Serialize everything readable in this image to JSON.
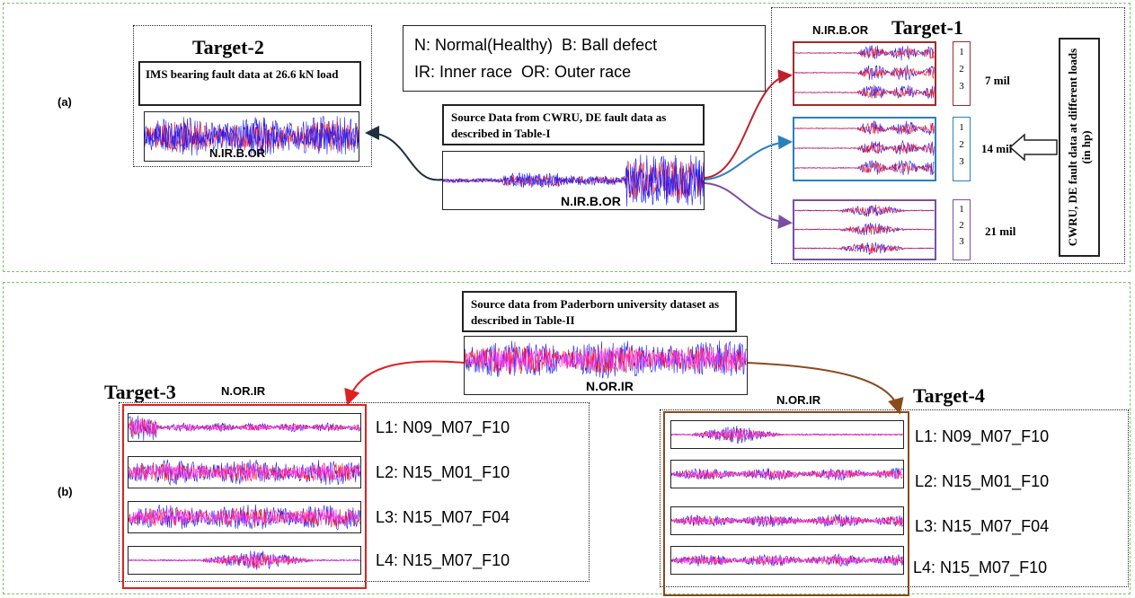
{
  "panel_a": {
    "label": "(a)",
    "legend": {
      "line1": "N: Normal(Healthy)  B: Ball defect",
      "line2": "IR: Inner race  OR: Outer race"
    },
    "source": {
      "caption": "Source Data from CWRU, DE fault data as described in Table-I",
      "wave_label": "N.IR.B.OR"
    },
    "target2": {
      "title": "Target-2",
      "caption": "IMS bearing fault data at 26.6 kN  load",
      "wave_label": "N.IR.B.OR"
    },
    "target1": {
      "title": "Target-1",
      "wave_label": "N.IR.B.OR",
      "side_label": "CWRU, DE fault data at different loads (in hp)",
      "groups": [
        {
          "size": "7 mil",
          "numbers": [
            "1",
            "2",
            "3"
          ],
          "color": "#a32a2a"
        },
        {
          "size": "14 mil",
          "numbers": [
            "1",
            "2",
            "3"
          ],
          "color": "#2b7fc1"
        },
        {
          "size": "21 mil",
          "numbers": [
            "1",
            "2",
            "3"
          ],
          "color": "#7a4fa2"
        }
      ]
    }
  },
  "panel_b": {
    "label": "(b)",
    "source": {
      "caption": "Source data from Paderborn university dataset as described in Table-II",
      "wave_label": "N.OR.IR"
    },
    "target3": {
      "title": "Target-3",
      "wave_label": "N.OR.IR",
      "levels": [
        "L1: N09_M07_F10",
        "L2: N15_M01_F10",
        "L3: N15_M07_F04",
        "L4: N15_M07_F10"
      ]
    },
    "target4": {
      "title": "Target-4",
      "wave_label": "N.OR.IR",
      "levels": [
        "L1: N09_M07_F10",
        "L2: N15_M01_F10",
        "L3: N15_M07_F04",
        "L4: N15_M07_F10"
      ]
    }
  },
  "colors": {
    "panel_border": "#7cc36a",
    "wave_blue": "#1a1aff",
    "wave_red": "#ff1a1a",
    "wave_magenta": "#ff33ff",
    "arrow_red": "#e02020",
    "arrow_brown": "#8b4a1c",
    "target3_box": "#e02020",
    "target4_box": "#8b4a1c"
  }
}
